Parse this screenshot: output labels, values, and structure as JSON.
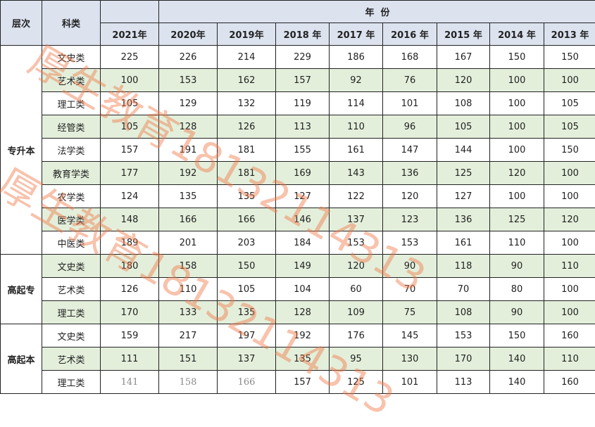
{
  "header": {
    "level_label": "层次",
    "category_label": "科类",
    "year_group_label": "年  份",
    "years": [
      "2021年",
      "2020年",
      "2019年",
      "2018 年",
      "2017 年",
      "2016 年",
      "2015 年",
      "2014 年",
      "2013 年"
    ]
  },
  "groups": [
    {
      "level": "专升本",
      "rows": [
        {
          "category": "文史类",
          "values": [
            "225",
            "226",
            "214",
            "229",
            "186",
            "168",
            "167",
            "150",
            "150"
          ]
        },
        {
          "category": "艺术类",
          "values": [
            "100",
            "153",
            "162",
            "157",
            "92",
            "76",
            "120",
            "100",
            "100"
          ]
        },
        {
          "category": "理工类",
          "values": [
            "105",
            "129",
            "132",
            "119",
            "114",
            "101",
            "108",
            "100",
            "105"
          ]
        },
        {
          "category": "经管类",
          "values": [
            "105",
            "128",
            "126",
            "113",
            "110",
            "96",
            "105",
            "100",
            "105"
          ]
        },
        {
          "category": "法学类",
          "values": [
            "157",
            "191",
            "181",
            "155",
            "161",
            "147",
            "144",
            "100",
            "150"
          ]
        },
        {
          "category": "教育学类",
          "values": [
            "177",
            "192",
            "181",
            "169",
            "143",
            "136",
            "125",
            "120",
            "100"
          ]
        },
        {
          "category": "农学类",
          "values": [
            "124",
            "135",
            "135",
            "127",
            "122",
            "120",
            "127",
            "100",
            "100"
          ]
        },
        {
          "category": "医学类",
          "values": [
            "148",
            "166",
            "166",
            "146",
            "137",
            "123",
            "136",
            "125",
            "120"
          ]
        },
        {
          "category": "中医类",
          "values": [
            "189",
            "201",
            "203",
            "184",
            "153",
            "153",
            "161",
            "110",
            "100"
          ]
        }
      ]
    },
    {
      "level": "高起专",
      "rows": [
        {
          "category": "文史类",
          "values": [
            "180",
            "158",
            "150",
            "149",
            "120",
            "90",
            "118",
            "90",
            "110"
          ]
        },
        {
          "category": "艺术类",
          "values": [
            "126",
            "110",
            "105",
            "104",
            "60",
            "70",
            "70",
            "80",
            "100"
          ]
        },
        {
          "category": "理工类",
          "values": [
            "170",
            "133",
            "135",
            "128",
            "109",
            "75",
            "108",
            "90",
            "100"
          ]
        }
      ]
    },
    {
      "level": "高起本",
      "rows": [
        {
          "category": "文史类",
          "values": [
            "159",
            "217",
            "197",
            "192",
            "176",
            "145",
            "153",
            "150",
            "160"
          ]
        },
        {
          "category": "艺术类",
          "values": [
            "111",
            "151",
            "137",
            "135",
            "95",
            "130",
            "170",
            "140",
            "110"
          ]
        },
        {
          "category": "理工类",
          "values": [
            "141",
            "158",
            "166",
            "157",
            "125",
            "101",
            "113",
            "140",
            "160"
          ]
        }
      ]
    }
  ],
  "watermark": "厚生教育18132114313",
  "colors": {
    "header_bg": "#dce3ef",
    "stripe_bg": "#e3efdb",
    "watermark": "#f07846"
  }
}
